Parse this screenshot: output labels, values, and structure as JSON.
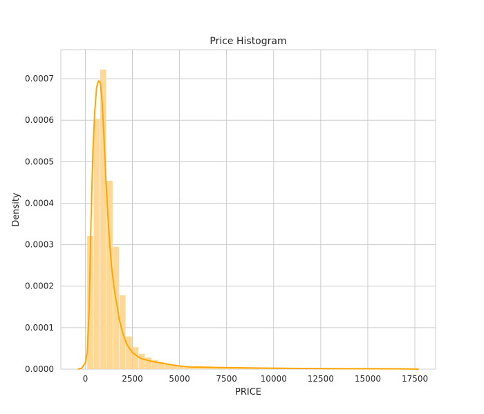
{
  "chart_data": {
    "type": "bar",
    "title": "Price Histogram",
    "xlabel": "PRICE",
    "ylabel": "Density",
    "xlim": [
      -1300,
      18600
    ],
    "ylim": [
      0,
      0.00077
    ],
    "grid": true,
    "x_ticks": [
      0,
      2500,
      5000,
      7500,
      10000,
      12500,
      15000,
      17500
    ],
    "x_tick_labels": [
      "0",
      "2500",
      "5000",
      "7500",
      "10000",
      "12500",
      "15000",
      "17500"
    ],
    "y_ticks": [
      0,
      0.0001,
      0.0002,
      0.0003,
      0.0004,
      0.0005,
      0.0006,
      0.0007
    ],
    "y_tick_labels": [
      "0.0000",
      "0.0001",
      "0.0002",
      "0.0003",
      "0.0004",
      "0.0005",
      "0.0006",
      "0.0007"
    ],
    "bar_color": "#ffd896",
    "line_color": "#ffa500",
    "bins": {
      "start": 100,
      "width": 343,
      "values": [
        0.000321,
        0.000603,
        0.000722,
        0.000454,
        0.000295,
        0.000178,
        7.9e-05,
        5.3e-05,
        3.7e-05,
        2.8e-05,
        2.2e-05,
        1.7e-05,
        1.3e-05,
        9e-06,
        8e-06,
        6.5e-06,
        5e-06,
        4e-06,
        3.3e-06,
        2.8e-06,
        2.5e-06,
        2e-06,
        1.7e-06,
        1.5e-06,
        1.3e-06,
        1.2e-06,
        1.1e-06,
        1e-06,
        9e-07,
        8e-07,
        8e-07,
        7e-07,
        7e-07,
        6e-07,
        6e-07,
        6e-07,
        5e-07,
        5e-07,
        5e-07,
        4e-07,
        4e-07,
        4e-07,
        4e-07,
        3e-07,
        3e-07,
        3e-07,
        3e-07,
        2e-07,
        2e-07,
        2e-07
      ]
    },
    "kde": {
      "x": [
        -400,
        -200,
        0,
        100,
        200,
        300,
        400,
        500,
        600,
        700,
        800,
        900,
        1000,
        1100,
        1200,
        1300,
        1400,
        1500,
        1600,
        1700,
        1800,
        2000,
        2200,
        2500,
        2800,
        3000,
        3500,
        4000,
        4500,
        5000,
        5500,
        6000,
        6500,
        7000,
        8000,
        9000,
        10000,
        11000,
        12000,
        13000,
        14000,
        15000,
        16000,
        17000,
        17700
      ],
      "y": [
        0,
        2e-06,
        1.5e-05,
        4e-05,
        0.00014,
        0.00035,
        0.00052,
        0.00062,
        0.00068,
        0.000695,
        0.00069,
        0.00064,
        0.00055,
        0.00045,
        0.00037,
        0.0003,
        0.000245,
        0.000205,
        0.000175,
        0.00015,
        0.00012,
        8.5e-05,
        6e-05,
        4e-05,
        3e-05,
        2.5e-05,
        1.9e-05,
        1.5e-05,
        1.1e-05,
        7.5e-06,
        5.5e-06,
        5e-06,
        4.5e-06,
        4e-06,
        3.3e-06,
        2.7e-06,
        2.2e-06,
        1.8e-06,
        1.5e-06,
        1.3e-06,
        1.1e-06,
        1e-06,
        8e-07,
        6e-07,
        0
      ]
    }
  }
}
